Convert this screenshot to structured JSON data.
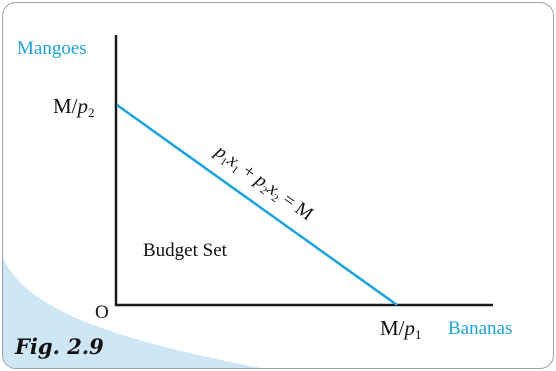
{
  "y_axis_label": "Mangoes",
  "x_axis_label": "Bananas",
  "origin_label": "O",
  "y_intercept_label": {
    "main": "M/",
    "var": "p",
    "sub": "2"
  },
  "x_intercept_label": {
    "main": "M/",
    "var": "p",
    "sub": "1"
  },
  "budget_line_equation": "p1x1 + p2x2 = M",
  "region_label": "Budget Set",
  "figure_caption": "Fig. 2.9",
  "colors": {
    "accent_blue": "#1ba3dc",
    "axis": "#1a1a1a",
    "corner_wave": "#cfe7f5",
    "frame_border": "#9aa3ab"
  }
}
